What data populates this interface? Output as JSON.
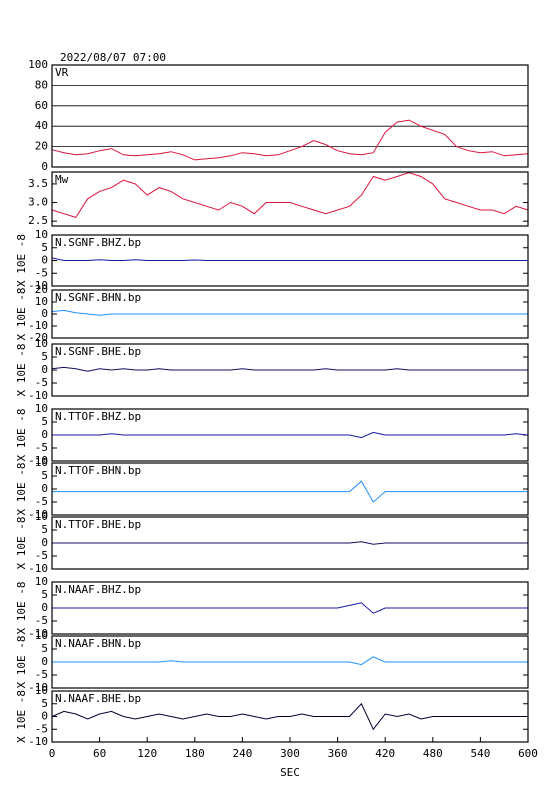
{
  "chart_data": [
    {
      "type": "line",
      "title": "2022/08/07 07:00",
      "label": "VR",
      "color": "#dc143c",
      "grid": true,
      "xlim": [
        0,
        600
      ],
      "ylim": [
        0,
        100
      ],
      "yticks": [
        0,
        20,
        40,
        60,
        80,
        100
      ],
      "x": [
        0,
        15,
        30,
        45,
        60,
        75,
        90,
        105,
        120,
        135,
        150,
        165,
        180,
        195,
        210,
        225,
        240,
        255,
        270,
        285,
        300,
        315,
        330,
        345,
        360,
        375,
        390,
        405,
        420,
        435,
        450,
        465,
        480,
        495,
        510,
        525,
        540,
        555,
        570,
        585,
        600
      ],
      "values": [
        17,
        14,
        12,
        13,
        16,
        18,
        12,
        11,
        12,
        13,
        15,
        12,
        7,
        8,
        9,
        11,
        14,
        13,
        11,
        12,
        16,
        20,
        26,
        22,
        16,
        13,
        12,
        14,
        34,
        44,
        46,
        40,
        36,
        32,
        20,
        16,
        14,
        15,
        11,
        12,
        13
      ]
    },
    {
      "type": "line",
      "label": "Mw",
      "color": "#dc143c",
      "xlim": [
        0,
        600
      ],
      "ylim": [
        2.37,
        3.82
      ],
      "yticks": [
        2.5,
        {
          "value": 3,
          "label": "3.0"
        },
        3.5
      ],
      "x": [
        0,
        15,
        30,
        45,
        60,
        75,
        90,
        105,
        120,
        135,
        150,
        165,
        180,
        195,
        210,
        225,
        240,
        255,
        270,
        285,
        300,
        315,
        330,
        345,
        360,
        375,
        390,
        405,
        420,
        435,
        450,
        465,
        480,
        495,
        510,
        525,
        540,
        555,
        570,
        585,
        600
      ],
      "values": [
        2.8,
        2.7,
        2.6,
        3.1,
        3.3,
        3.4,
        3.6,
        3.5,
        3.2,
        3.4,
        3.3,
        3.1,
        3.0,
        2.9,
        2.8,
        3.0,
        2.9,
        2.7,
        3.0,
        3.0,
        3.0,
        2.9,
        2.8,
        2.7,
        2.8,
        2.9,
        3.2,
        3.7,
        3.6,
        3.7,
        3.8,
        3.7,
        3.5,
        3.1,
        3.0,
        2.9,
        2.8,
        2.8,
        2.7,
        2.9,
        2.8
      ]
    },
    {
      "type": "line",
      "label": "N.SGNF.BHZ.bp",
      "ylabel": "X 10E -8",
      "color": "#1a1aa0",
      "xlim": [
        0,
        600
      ],
      "ylim": [
        -10,
        10
      ],
      "yticks": [
        -10,
        -5,
        0,
        5,
        10
      ],
      "x": [
        0,
        15,
        30,
        45,
        60,
        75,
        90,
        105,
        120,
        135,
        150,
        165,
        180,
        195,
        210,
        225,
        240,
        255,
        270,
        285,
        300,
        315,
        330,
        345,
        360,
        375,
        390,
        405,
        420,
        435,
        450,
        465,
        480,
        495,
        510,
        525,
        540,
        555,
        570,
        585,
        600
      ],
      "values": [
        1,
        0,
        0,
        0,
        0.3,
        0,
        0,
        0.3,
        0,
        0,
        0,
        0,
        0.2,
        0,
        0,
        0,
        0,
        0,
        0,
        0,
        0,
        0,
        0,
        0,
        0,
        0,
        0,
        0,
        0,
        0,
        0,
        0,
        0,
        0,
        0,
        0,
        0,
        0,
        0,
        0,
        0
      ]
    },
    {
      "type": "line",
      "label": "N.SGNF.BHN.bp",
      "ylabel": "X 10E -8",
      "color": "#1e90ff",
      "xlim": [
        0,
        600
      ],
      "ylim": [
        -20,
        20
      ],
      "yticks": [
        -20,
        -10,
        0,
        10,
        20
      ],
      "x": [
        0,
        15,
        30,
        45,
        60,
        75,
        90,
        105,
        120,
        135,
        150,
        165,
        180,
        195,
        210,
        225,
        240,
        255,
        270,
        285,
        300,
        315,
        330,
        345,
        360,
        375,
        390,
        405,
        420,
        435,
        450,
        465,
        480,
        495,
        510,
        525,
        540,
        555,
        570,
        585,
        600
      ],
      "values": [
        2,
        3,
        1,
        0,
        -1,
        0,
        0,
        0,
        0,
        0,
        0,
        0,
        0,
        0,
        0,
        0,
        0,
        0,
        0,
        0,
        0,
        0,
        0,
        0,
        0,
        0,
        0,
        0,
        0,
        0,
        0,
        0,
        0,
        0,
        0,
        0,
        0,
        0,
        0,
        0,
        0
      ]
    },
    {
      "type": "line",
      "label": "N.SGNF.BHE.bp",
      "ylabel": "X 10E -8",
      "color": "#101060",
      "xlim": [
        0,
        600
      ],
      "ylim": [
        -10,
        10
      ],
      "yticks": [
        -10,
        -5,
        0,
        5,
        10
      ],
      "x": [
        0,
        15,
        30,
        45,
        60,
        75,
        90,
        105,
        120,
        135,
        150,
        165,
        180,
        195,
        210,
        225,
        240,
        255,
        270,
        285,
        300,
        315,
        330,
        345,
        360,
        375,
        390,
        405,
        420,
        435,
        450,
        465,
        480,
        495,
        510,
        525,
        540,
        555,
        570,
        585,
        600
      ],
      "values": [
        0.5,
        1,
        0.5,
        -0.5,
        0.5,
        0,
        0.5,
        0,
        0,
        0.5,
        0,
        0,
        0,
        0,
        0,
        0,
        0.5,
        0,
        0,
        0,
        0,
        0,
        0,
        0.5,
        0,
        0,
        0,
        0,
        0,
        0.5,
        0,
        0,
        0,
        0,
        0,
        0,
        0,
        0,
        0,
        0,
        0
      ]
    },
    {
      "type": "line",
      "label": "N.TTOF.BHZ.bp",
      "ylabel": "X 10E -8",
      "color": "#1a1aa0",
      "xlim": [
        0,
        600
      ],
      "ylim": [
        -10,
        10
      ],
      "yticks": [
        -10,
        -5,
        0,
        5,
        10
      ],
      "x": [
        0,
        15,
        30,
        45,
        60,
        75,
        90,
        105,
        120,
        135,
        150,
        165,
        180,
        195,
        210,
        225,
        240,
        255,
        270,
        285,
        300,
        315,
        330,
        345,
        360,
        375,
        390,
        405,
        420,
        435,
        450,
        465,
        480,
        495,
        510,
        525,
        540,
        555,
        570,
        585,
        600
      ],
      "values": [
        0,
        0,
        0,
        0,
        0,
        0.5,
        0,
        0,
        0,
        0,
        0,
        0,
        0,
        0,
        0,
        0,
        0,
        0,
        0,
        0,
        0,
        0,
        0,
        0,
        0,
        0,
        -1,
        1,
        0,
        0,
        0,
        0,
        0,
        0,
        0,
        0,
        0,
        0,
        0,
        0.5,
        0
      ]
    },
    {
      "type": "line",
      "label": "N.TTOF.BHN.bp",
      "ylabel": "X 10E -8",
      "color": "#1e90ff",
      "xlim": [
        0,
        600
      ],
      "ylim": [
        -10,
        10
      ],
      "yticks": [
        -10,
        -5,
        0,
        5,
        10
      ],
      "x": [
        0,
        15,
        30,
        45,
        60,
        75,
        90,
        105,
        120,
        135,
        150,
        165,
        180,
        195,
        210,
        225,
        240,
        255,
        270,
        285,
        300,
        315,
        330,
        345,
        360,
        375,
        390,
        405,
        420,
        435,
        450,
        465,
        480,
        495,
        510,
        525,
        540,
        555,
        570,
        585,
        600
      ],
      "values": [
        -1,
        -1,
        -1,
        -1,
        -1,
        -1,
        -1,
        -1,
        -1,
        -1,
        -1,
        -1,
        -1,
        -1,
        -1,
        -1,
        -1,
        -1,
        -1,
        -1,
        -1,
        -1,
        -1,
        -1,
        -1,
        -1,
        3,
        -5,
        -1,
        -1,
        -1,
        -1,
        -1,
        -1,
        -1,
        -1,
        -1,
        -1,
        -1,
        -1,
        -1
      ]
    },
    {
      "type": "line",
      "label": "N.TTOF.BHE.bp",
      "ylabel": "X 10E -8",
      "color": "#101060",
      "xlim": [
        0,
        600
      ],
      "ylim": [
        -10,
        10
      ],
      "yticks": [
        -10,
        -5,
        0,
        5,
        10
      ],
      "x": [
        0,
        15,
        30,
        45,
        60,
        75,
        90,
        105,
        120,
        135,
        150,
        165,
        180,
        195,
        210,
        225,
        240,
        255,
        270,
        285,
        300,
        315,
        330,
        345,
        360,
        375,
        390,
        405,
        420,
        435,
        450,
        465,
        480,
        495,
        510,
        525,
        540,
        555,
        570,
        585,
        600
      ],
      "values": [
        0,
        0,
        0,
        0,
        0,
        0,
        0,
        0,
        0,
        0,
        0,
        0,
        0,
        0,
        0,
        0,
        0,
        0,
        0,
        0,
        0,
        0,
        0,
        0,
        0,
        0,
        0.5,
        -0.5,
        0,
        0,
        0,
        0,
        0,
        0,
        0,
        0,
        0,
        0,
        0,
        0,
        0
      ]
    },
    {
      "type": "line",
      "label": "N.NAAF.BHZ.bp",
      "ylabel": "X 10E -8",
      "color": "#1a1aa0",
      "xlim": [
        0,
        600
      ],
      "ylim": [
        -10,
        10
      ],
      "yticks": [
        -10,
        -5,
        0,
        5,
        10
      ],
      "x": [
        0,
        15,
        30,
        45,
        60,
        75,
        90,
        105,
        120,
        135,
        150,
        165,
        180,
        195,
        210,
        225,
        240,
        255,
        270,
        285,
        300,
        315,
        330,
        345,
        360,
        375,
        390,
        405,
        420,
        435,
        450,
        465,
        480,
        495,
        510,
        525,
        540,
        555,
        570,
        585,
        600
      ],
      "values": [
        0,
        0,
        0,
        0,
        0,
        0,
        0,
        0,
        0,
        0,
        0,
        0,
        0,
        0,
        0,
        0,
        0,
        0,
        0,
        0,
        0,
        0,
        0,
        0,
        0,
        1,
        2,
        -2,
        0,
        0,
        0,
        0,
        0,
        0,
        0,
        0,
        0,
        0,
        0,
        0,
        0
      ]
    },
    {
      "type": "line",
      "label": "N.NAAF.BHN.bp",
      "ylabel": "X 10E -8",
      "color": "#1e90ff",
      "xlim": [
        0,
        600
      ],
      "ylim": [
        -10,
        10
      ],
      "yticks": [
        -10,
        -5,
        0,
        5,
        10
      ],
      "x": [
        0,
        15,
        30,
        45,
        60,
        75,
        90,
        105,
        120,
        135,
        150,
        165,
        180,
        195,
        210,
        225,
        240,
        255,
        270,
        285,
        300,
        315,
        330,
        345,
        360,
        375,
        390,
        405,
        420,
        435,
        450,
        465,
        480,
        495,
        510,
        525,
        540,
        555,
        570,
        585,
        600
      ],
      "values": [
        0,
        0,
        0,
        0,
        0,
        0,
        0,
        0,
        0,
        0,
        0.5,
        0,
        0,
        0,
        0,
        0,
        0,
        0,
        0,
        0,
        0,
        0,
        0,
        0,
        0,
        0,
        -1,
        2,
        0,
        0,
        0,
        0,
        0,
        0,
        0,
        0,
        0,
        0,
        0,
        0,
        0
      ]
    },
    {
      "type": "line",
      "label": "N.NAAF.BHE.bp",
      "ylabel": "X 10E -8",
      "xlabel": "SEC",
      "color": "#000030",
      "xlim": [
        0,
        600
      ],
      "ylim": [
        -10,
        10
      ],
      "yticks": [
        -10,
        -5,
        0,
        5,
        10
      ],
      "xticks": [
        0,
        60,
        120,
        180,
        240,
        300,
        360,
        420,
        480,
        540,
        600
      ],
      "x": [
        0,
        15,
        30,
        45,
        60,
        75,
        90,
        105,
        120,
        135,
        150,
        165,
        180,
        195,
        210,
        225,
        240,
        255,
        270,
        285,
        300,
        315,
        330,
        345,
        360,
        375,
        390,
        405,
        420,
        435,
        450,
        465,
        480,
        495,
        510,
        525,
        540,
        555,
        570,
        585,
        600
      ],
      "values": [
        0,
        2,
        1,
        -1,
        1,
        2,
        0,
        -1,
        0,
        1,
        0,
        -1,
        0,
        1,
        0,
        0,
        1,
        0,
        -1,
        0,
        0,
        1,
        0,
        0,
        0,
        0,
        5,
        -5,
        1,
        0,
        1,
        -1,
        0,
        0,
        0,
        0,
        0,
        0,
        0,
        0,
        0
      ]
    }
  ]
}
